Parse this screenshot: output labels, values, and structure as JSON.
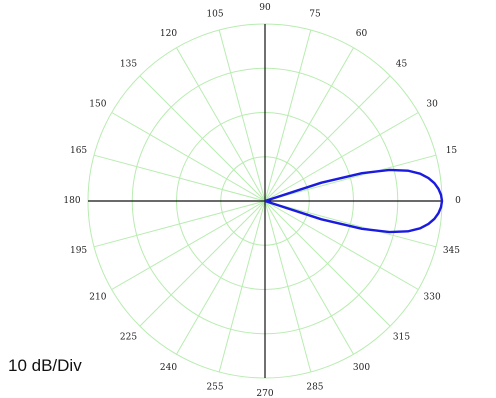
{
  "chart_data": {
    "type": "polar-line",
    "scale_label": "10 dB/Div",
    "angle_unit": "degrees",
    "angle_ticks": [
      0,
      15,
      30,
      45,
      60,
      75,
      90,
      105,
      120,
      135,
      150,
      165,
      180,
      195,
      210,
      225,
      240,
      255,
      270,
      285,
      300,
      315,
      330,
      345
    ],
    "angle_tick_labels": [
      "0",
      "15",
      "30",
      "45",
      "60",
      "75",
      "90",
      "105",
      "120",
      "135",
      "150",
      "165",
      "180",
      "195",
      "210",
      "225",
      "240",
      "255",
      "270",
      "285",
      "300",
      "315",
      "330",
      "345"
    ],
    "radial_range_db": [
      -40,
      0
    ],
    "radial_divisions": 4,
    "grid": true,
    "colors": {
      "grid": "#b8ecb0",
      "axes": "#111111",
      "series": "#1a1ae0"
    },
    "series": [
      {
        "angles": [
          -20,
          -18,
          -16,
          -14,
          -12,
          -10,
          -8,
          -6,
          -4,
          -2,
          0,
          2,
          4,
          6,
          8,
          10,
          12,
          14,
          16,
          18,
          20
        ],
        "gain_db": [
          -40,
          -26.6,
          -17.2,
          -11,
          -7,
          -4.4,
          -2.7,
          -1.5,
          -0.7,
          -0.2,
          0,
          -0.2,
          -0.7,
          -1.5,
          -2.7,
          -4.4,
          -7,
          -11,
          -17.2,
          -26.6,
          -40
        ]
      }
    ]
  }
}
